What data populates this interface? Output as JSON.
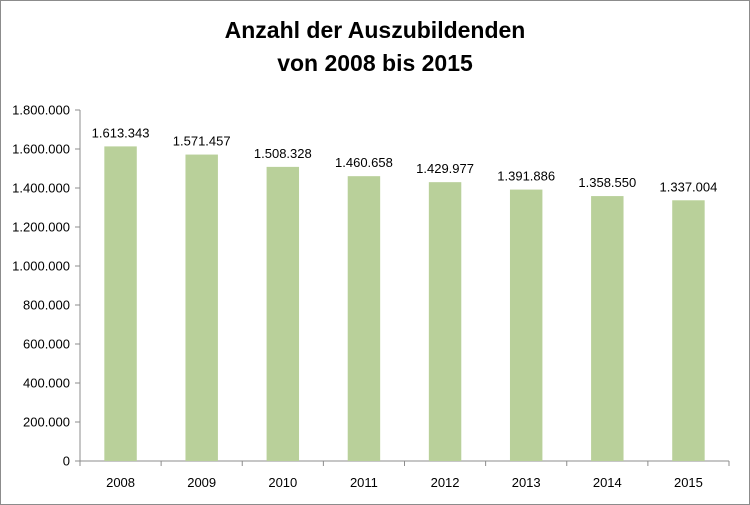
{
  "chart_data": {
    "type": "bar",
    "title_line1": "Anzahl der Auszubildenden",
    "title_line2": "von 2008 bis 2015",
    "xlabel": "",
    "ylabel": "",
    "categories": [
      "2008",
      "2009",
      "2010",
      "2011",
      "2012",
      "2013",
      "2014",
      "2015"
    ],
    "values": [
      1613343,
      1571457,
      1508328,
      1460658,
      1429977,
      1391886,
      1358550,
      1337004
    ],
    "value_labels": [
      "1.613.343",
      "1.571.457",
      "1.508.328",
      "1.460.658",
      "1.429.977",
      "1.391.886",
      "1.358.550",
      "1.337.004"
    ],
    "ylim": [
      0,
      1800000
    ],
    "yticks": [
      0,
      200000,
      400000,
      600000,
      800000,
      1000000,
      1200000,
      1400000,
      1600000,
      1800000
    ],
    "ytick_labels": [
      "0",
      "200.000",
      "400.000",
      "600.000",
      "800.000",
      "1.000.000",
      "1.200.000",
      "1.400.000",
      "1.600.000",
      "1.800.000"
    ],
    "grid": false,
    "legend": "none",
    "bar_color": "#b9d09a",
    "axis_color": "#8c8c8c"
  }
}
